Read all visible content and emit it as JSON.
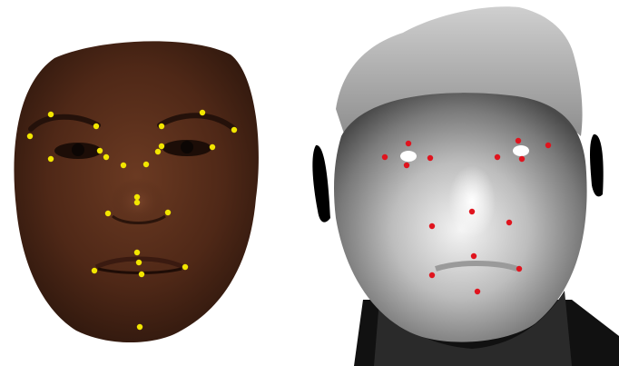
{
  "panels": [
    {
      "name": "color-face-with-landmarks",
      "landmark_color": "#f2e600",
      "landmark_count": 24
    },
    {
      "name": "depth-face-with-landmarks",
      "landmark_color": "#e0141e",
      "landmark_count": 18
    }
  ]
}
